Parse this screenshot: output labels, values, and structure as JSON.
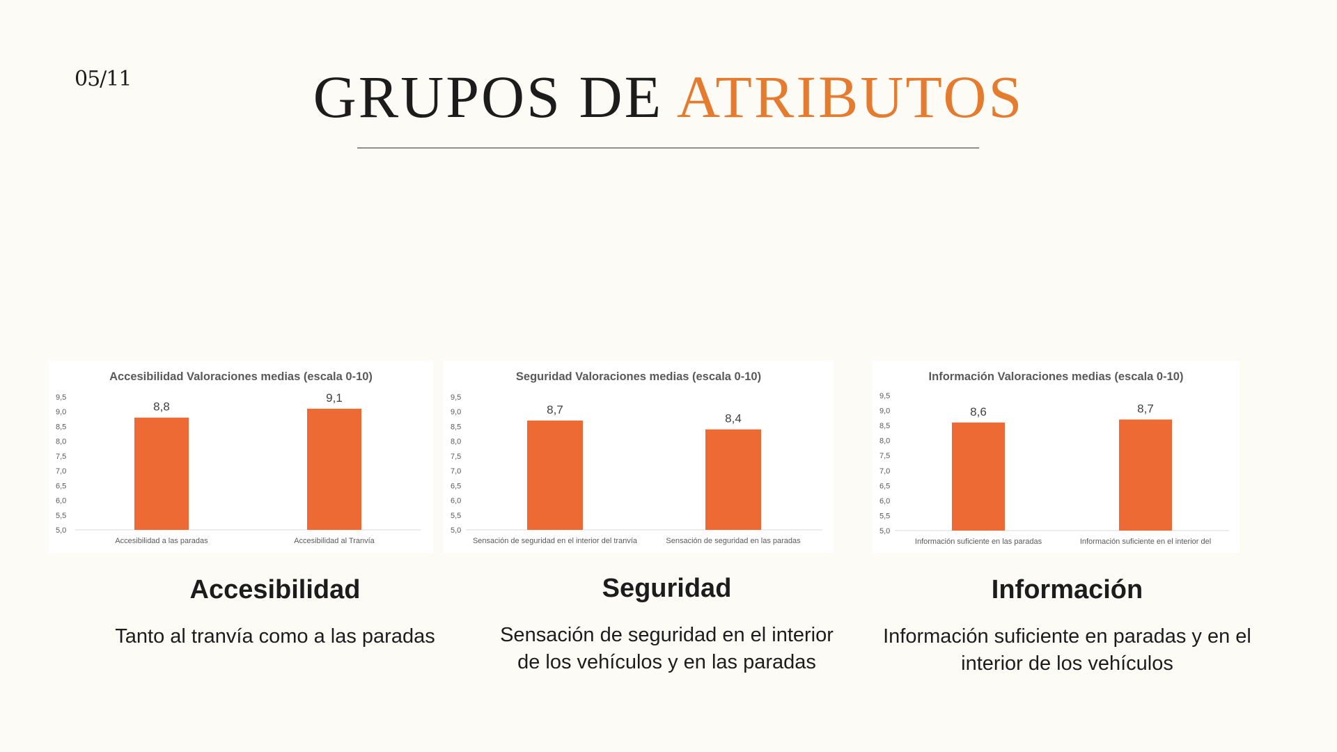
{
  "page_number": "05/11",
  "title": {
    "part1": "GRUPOS DE ",
    "part2": "ATRIBUTOS"
  },
  "colors": {
    "accent": "#e57b2f",
    "bar": "#ed6a34",
    "background": "#fcfbf6"
  },
  "chart_data": [
    {
      "type": "bar",
      "title": "Accesibilidad Valoraciones medias (escala 0-10)",
      "categories": [
        "Accesibilidad a las paradas",
        "Accesibilidad al Tranvía"
      ],
      "values": [
        8.8,
        9.1
      ],
      "value_labels": [
        "8,8",
        "9,1"
      ],
      "ylim": [
        5.0,
        9.5
      ],
      "yticks": [
        "5,0",
        "5,5",
        "6,0",
        "6,5",
        "7,0",
        "7,5",
        "8,0",
        "8,5",
        "9,0",
        "9,5"
      ],
      "grid": false
    },
    {
      "type": "bar",
      "title": "Seguridad Valoraciones medias (escala 0-10)",
      "categories": [
        "Sensación de seguridad en el interior del tranvía",
        "Sensación de seguridad en las paradas"
      ],
      "values": [
        8.7,
        8.4
      ],
      "value_labels": [
        "8,7",
        "8,4"
      ],
      "ylim": [
        5.0,
        9.5
      ],
      "yticks": [
        "5,0",
        "5,5",
        "6,0",
        "6,5",
        "7,0",
        "7,5",
        "8,0",
        "8,5",
        "9,0",
        "9,5"
      ],
      "grid": false
    },
    {
      "type": "bar",
      "title": "Información Valoraciones medias (escala 0-10)",
      "categories": [
        "Información suficiente en las paradas",
        "Información suficiente en el interior del"
      ],
      "values": [
        8.6,
        8.7
      ],
      "value_labels": [
        "8,6",
        "8,7"
      ],
      "ylim": [
        5.0,
        9.5
      ],
      "yticks": [
        "5,0",
        "5,5",
        "6,0",
        "6,5",
        "7,0",
        "7,5",
        "8,0",
        "8,5",
        "9,0",
        "9,5"
      ],
      "grid": false
    }
  ],
  "groups": [
    {
      "heading": "Accesibilidad",
      "desc_lines": [
        "Tanto al tranvía como a las paradas"
      ]
    },
    {
      "heading": "Seguridad",
      "desc_lines": [
        "Sensación de seguridad en el interior",
        "de los vehículos y en las paradas"
      ]
    },
    {
      "heading": "Información",
      "desc_lines": [
        "Información suficiente en paradas y en el",
        "interior de los vehículos"
      ]
    }
  ]
}
